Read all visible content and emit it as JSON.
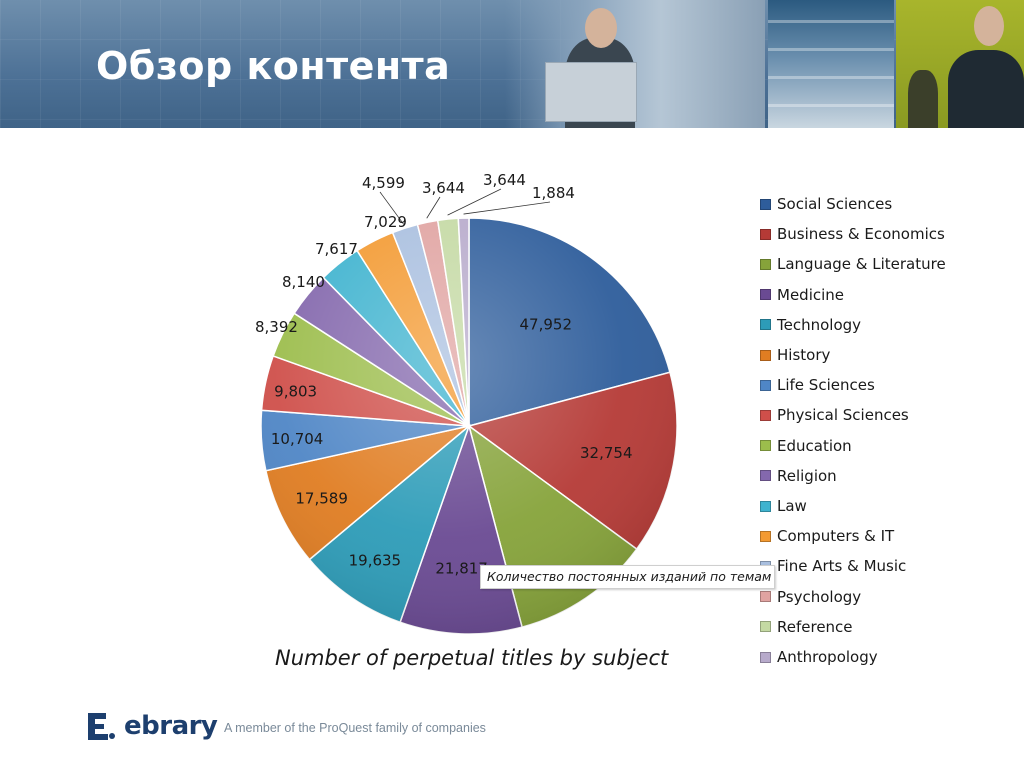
{
  "header": {
    "title": "Обзор контента"
  },
  "chart_data": {
    "type": "pie",
    "title": "Number of perpetual titles by subject",
    "categories": [
      "Social Sciences",
      "Business & Economics",
      "Language & Literature",
      "Medicine",
      "Technology",
      "History",
      "Life Sciences",
      "Physical Sciences",
      "Education",
      "Religion",
      "Law",
      "Computers & IT",
      "Fine Arts & Music",
      "Psychology",
      "Reference",
      "Anthropology"
    ],
    "values": [
      47952,
      32754,
      24891,
      21817,
      19635,
      17589,
      10704,
      9803,
      8392,
      8140,
      7617,
      7029,
      4599,
      3644,
      3644,
      1884
    ],
    "value_labels": [
      "47,952",
      "32,754",
      "",
      "21,817",
      "19,635",
      "17,589",
      "10,704",
      "9,803",
      "8,392",
      "8,140",
      "7,617",
      "7,029",
      "4,599",
      "3,644",
      "3,644",
      "1,884"
    ],
    "colors": [
      "#2e5d9b",
      "#b53a36",
      "#86a33a",
      "#6a4a93",
      "#2d9cb8",
      "#e07d22",
      "#4f86c6",
      "#cf4f4a",
      "#9cbd4c",
      "#8468ad",
      "#3fb3cf",
      "#f39a32",
      "#a9bfdf",
      "#e0a3a1",
      "#c4d9a3",
      "#b7aacb"
    ],
    "legend_position": "right"
  },
  "tooltip": {
    "text": "Количество постоянных изданий по темам"
  },
  "footer": {
    "logo_text": "ebrary",
    "tagline": "A member of the ProQuest family of companies"
  }
}
